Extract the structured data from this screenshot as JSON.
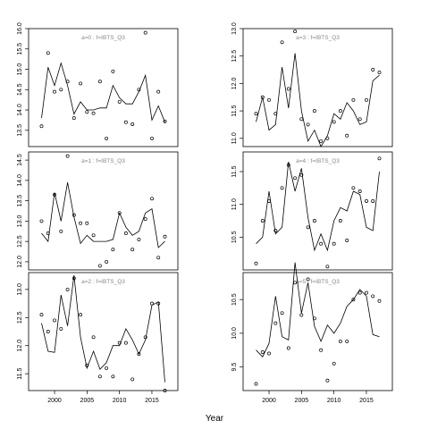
{
  "chart_data": {
    "type": "line",
    "xlabel": "Year",
    "ylabel": "",
    "panels": [
      {
        "title": "a=0 : f=IBTS_Q3",
        "xlim": [
          1996,
          2019
        ],
        "ylim": [
          13.1,
          16.0
        ],
        "yticks": [
          13.5,
          14.0,
          14.5,
          15.0,
          15.5,
          16.0
        ],
        "line": {
          "x": [
            1998,
            1999,
            2000,
            2001,
            2002,
            2003,
            2004,
            2005,
            2006,
            2007,
            2008,
            2009,
            2010,
            2011,
            2012,
            2013,
            2014,
            2015,
            2016,
            2017
          ],
          "y": [
            13.8,
            15.05,
            14.6,
            15.15,
            14.6,
            13.9,
            14.2,
            14.0,
            14.0,
            14.05,
            14.05,
            14.6,
            14.3,
            14.15,
            14.15,
            14.45,
            14.85,
            13.75,
            14.1,
            13.7
          ]
        },
        "points": {
          "x": [
            1998,
            1999,
            2000,
            2001,
            2002,
            2003,
            2004,
            2005,
            2006,
            2007,
            2008,
            2009,
            2010,
            2011,
            2012,
            2013,
            2014,
            2015,
            2016,
            2017
          ],
          "y": [
            13.6,
            15.4,
            14.45,
            14.5,
            14.7,
            13.8,
            14.65,
            13.95,
            13.92,
            14.7,
            13.3,
            14.95,
            14.2,
            13.7,
            13.65,
            14.5,
            15.9,
            13.3,
            14.45,
            13.72
          ]
        }
      },
      {
        "title": "a=3 : f=IBTS_Q3",
        "xlim": [
          1996,
          2019
        ],
        "ylim": [
          10.85,
          13.0
        ],
        "yticks": [
          11.0,
          11.5,
          12.0,
          12.5,
          13.0
        ],
        "line": {
          "x": [
            1998,
            1999,
            2000,
            2001,
            2002,
            2003,
            2004,
            2005,
            2006,
            2007,
            2008,
            2009,
            2010,
            2011,
            2012,
            2013,
            2014,
            2015,
            2016,
            2017
          ],
          "y": [
            11.3,
            11.75,
            11.15,
            11.25,
            12.3,
            11.55,
            12.55,
            11.5,
            10.95,
            11.15,
            10.85,
            11.05,
            11.45,
            11.35,
            11.65,
            11.5,
            11.25,
            11.3,
            12.05,
            12.15
          ]
        },
        "points": {
          "x": [
            1998,
            1999,
            2000,
            2001,
            2002,
            2003,
            2004,
            2005,
            2006,
            2007,
            2008,
            2009,
            2010,
            2011,
            2012,
            2013,
            2014,
            2015,
            2016,
            2017
          ],
          "y": [
            11.45,
            11.75,
            11.7,
            11.45,
            12.75,
            11.9,
            12.95,
            11.35,
            11.25,
            11.5,
            10.95,
            11.0,
            11.3,
            11.5,
            11.05,
            11.7,
            11.35,
            11.7,
            12.25,
            12.2
          ]
        }
      },
      {
        "title": "a=1 : f=IBTS_Q3",
        "xlim": [
          1996,
          2019
        ],
        "ylim": [
          11.8,
          14.7
        ],
        "yticks": [
          12.0,
          12.5,
          13.0,
          13.5,
          14.0,
          14.5
        ],
        "line": {
          "x": [
            1998,
            1999,
            2000,
            2001,
            2002,
            2003,
            2004,
            2005,
            2006,
            2007,
            2008,
            2009,
            2010,
            2011,
            2012,
            2013,
            2014,
            2015,
            2016,
            2017
          ],
          "y": [
            12.7,
            12.5,
            13.7,
            13.0,
            13.95,
            13.1,
            12.45,
            12.65,
            12.5,
            12.5,
            12.5,
            12.55,
            13.2,
            12.85,
            12.65,
            12.75,
            13.2,
            13.3,
            12.35,
            12.5
          ]
        },
        "points": {
          "x": [
            1998,
            1999,
            2000,
            2001,
            2002,
            2003,
            2004,
            2005,
            2006,
            2007,
            2008,
            2009,
            2010,
            2011,
            2012,
            2013,
            2014,
            2015,
            2016,
            2017
          ],
          "y": [
            13.0,
            12.7,
            13.65,
            12.75,
            14.6,
            13.15,
            12.95,
            12.95,
            12.65,
            11.9,
            12.0,
            12.3,
            13.2,
            12.7,
            12.3,
            12.55,
            13.05,
            13.55,
            12.1,
            12.62
          ]
        }
      },
      {
        "title": "a=4 : f=IBTS_Q3",
        "xlim": [
          1996,
          2019
        ],
        "ylim": [
          10.0,
          11.8
        ],
        "yticks": [
          10.5,
          11.0,
          11.5
        ],
        "line": {
          "x": [
            1998,
            1999,
            2000,
            2001,
            2002,
            2003,
            2004,
            2005,
            2006,
            2007,
            2008,
            2009,
            2010,
            2011,
            2012,
            2013,
            2014,
            2015,
            2016,
            2017
          ],
          "y": [
            10.4,
            10.5,
            11.2,
            10.55,
            10.65,
            11.65,
            11.2,
            11.55,
            10.8,
            10.3,
            10.55,
            10.3,
            10.75,
            10.95,
            10.9,
            11.2,
            11.15,
            10.65,
            10.6,
            11.5
          ]
        },
        "points": {
          "x": [
            1998,
            1999,
            2000,
            2001,
            2002,
            2003,
            2004,
            2005,
            2006,
            2007,
            2008,
            2009,
            2010,
            2011,
            2012,
            2013,
            2014,
            2015,
            2016,
            2017
          ],
          "y": [
            10.1,
            10.75,
            11.05,
            10.6,
            11.25,
            11.6,
            11.4,
            11.45,
            10.65,
            10.75,
            10.4,
            10.05,
            10.4,
            10.75,
            10.45,
            11.25,
            11.2,
            11.05,
            11.05,
            11.7
          ]
        }
      },
      {
        "title": "a=2 : f=IBTS_Q3",
        "xlim": [
          1996,
          2019
        ],
        "ylim": [
          11.2,
          13.3
        ],
        "yticks": [
          11.5,
          12.0,
          12.5,
          13.0
        ],
        "line": {
          "x": [
            1998,
            1999,
            2000,
            2001,
            2002,
            2003,
            2004,
            2005,
            2006,
            2007,
            2008,
            2009,
            2010,
            2011,
            2012,
            2013,
            2014,
            2015,
            2016,
            2017
          ],
          "y": [
            12.4,
            11.9,
            11.88,
            12.9,
            12.35,
            13.25,
            12.15,
            11.6,
            11.9,
            11.58,
            11.7,
            12.0,
            12.0,
            12.3,
            12.1,
            11.85,
            12.1,
            12.72,
            12.78,
            11.35
          ]
        },
        "points": {
          "x": [
            1998,
            1999,
            2000,
            2001,
            2002,
            2003,
            2004,
            2005,
            2006,
            2007,
            2008,
            2009,
            2010,
            2011,
            2012,
            2013,
            2014,
            2015,
            2016,
            2017
          ],
          "y": [
            12.55,
            12.25,
            12.45,
            12.3,
            13.0,
            13.2,
            12.55,
            11.65,
            12.15,
            11.45,
            11.6,
            11.45,
            12.05,
            12.05,
            11.4,
            11.85,
            12.15,
            12.75,
            12.75,
            11.2
          ]
        }
      },
      {
        "title": "a=5 : f=IBTS_Q3",
        "xlim": [
          1996,
          2019
        ],
        "ylim": [
          9.15,
          10.9
        ],
        "yticks": [
          9.5,
          10.0,
          10.5
        ],
        "line": {
          "x": [
            1998,
            1999,
            2000,
            2001,
            2002,
            2003,
            2004,
            2005,
            2006,
            2007,
            2008,
            2009,
            2010,
            2011,
            2012,
            2013,
            2014,
            2015,
            2016,
            2017
          ],
          "y": [
            9.75,
            9.65,
            9.85,
            10.55,
            9.95,
            9.9,
            11.05,
            10.3,
            10.75,
            10.1,
            9.88,
            10.12,
            10.0,
            10.15,
            10.4,
            10.5,
            10.65,
            10.55,
            9.98,
            9.95
          ]
        },
        "points": {
          "x": [
            1998,
            1999,
            2000,
            2001,
            2002,
            2003,
            2004,
            2005,
            2006,
            2007,
            2008,
            2009,
            2010,
            2011,
            2012,
            2013,
            2014,
            2015,
            2016,
            2017
          ],
          "y": [
            9.25,
            9.72,
            9.7,
            10.15,
            10.3,
            9.78,
            10.75,
            10.27,
            10.8,
            10.22,
            9.75,
            9.3,
            9.55,
            9.88,
            9.88,
            10.5,
            10.6,
            10.6,
            10.55,
            10.48
          ]
        }
      }
    ],
    "xticks": [
      2000,
      2005,
      2010,
      2015
    ],
    "grid": false
  }
}
